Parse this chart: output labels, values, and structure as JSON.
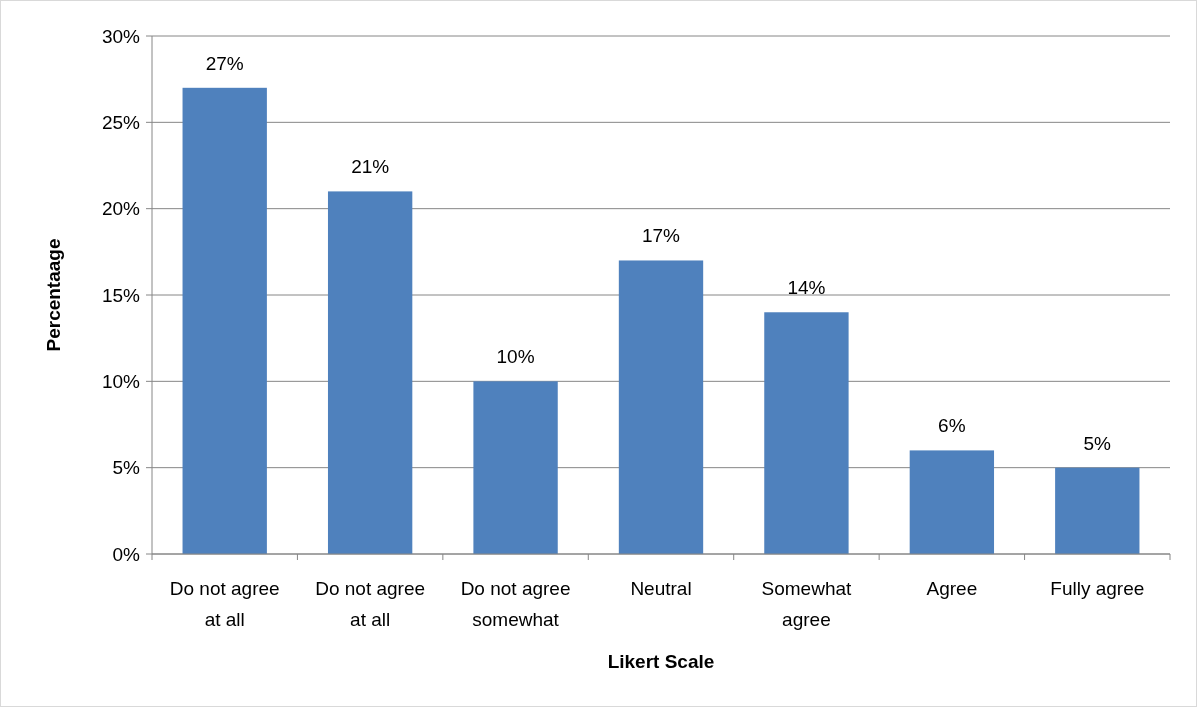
{
  "chart_data": {
    "type": "bar",
    "xlabel": "Likert Scale",
    "ylabel": "Percentaage",
    "categories": [
      "Do not agree at all",
      "Do not agree at all",
      "Do not agree somewhat",
      "Neutral",
      "Somewhat agree",
      "Agree",
      "Fully agree"
    ],
    "values": [
      27,
      21,
      10,
      17,
      14,
      6,
      5
    ],
    "value_labels": [
      "27%",
      "21%",
      "10%",
      "17%",
      "14%",
      "6%",
      "5%"
    ],
    "color": "#4f81bd",
    "ylim": [
      0,
      30
    ],
    "yticks": [
      {
        "value": 0,
        "label": "0%"
      },
      {
        "value": 5,
        "label": "5%"
      },
      {
        "value": 10,
        "label": "10%"
      },
      {
        "value": 15,
        "label": "15%"
      },
      {
        "value": 20,
        "label": "20%"
      },
      {
        "value": 25,
        "label": "25%"
      },
      {
        "value": 30,
        "label": "30%"
      }
    ],
    "grid": "y"
  }
}
